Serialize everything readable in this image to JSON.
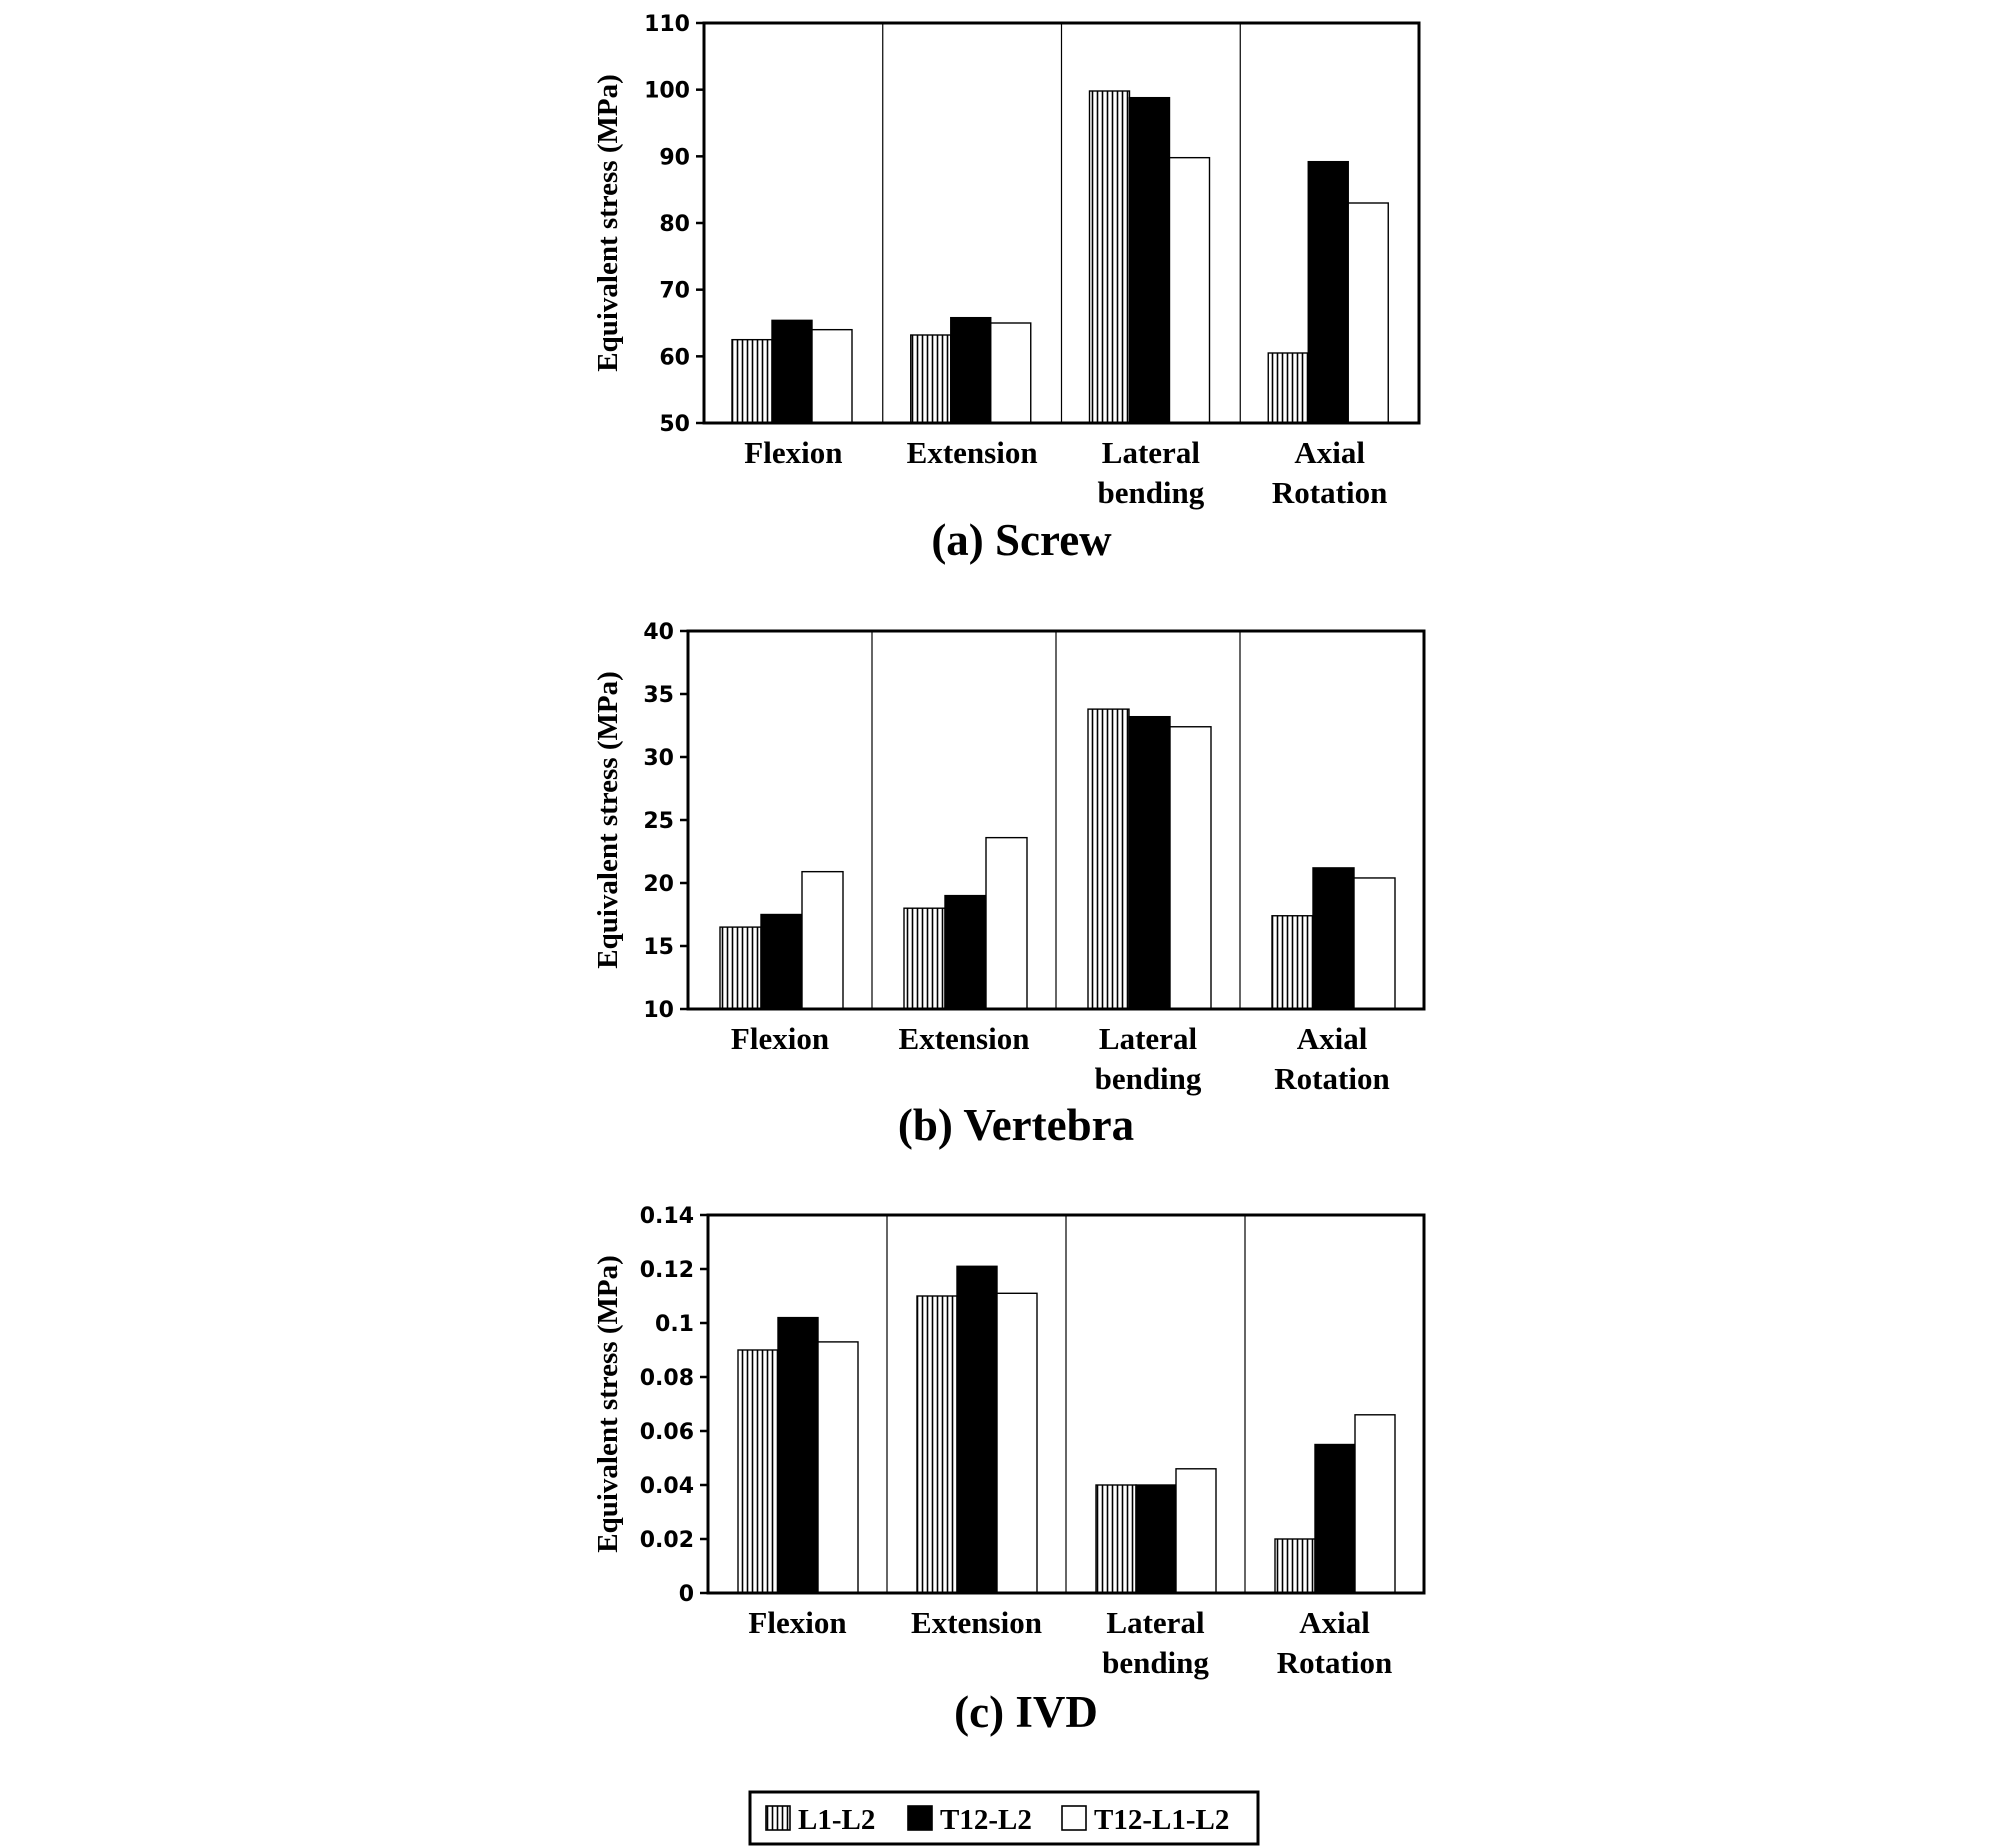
{
  "figure": {
    "legend": [
      {
        "label": "L1-L2",
        "pattern": "vertical-stripes"
      },
      {
        "label": "T12-L2",
        "pattern": "solid-black"
      },
      {
        "label": "T12-L1-L2",
        "pattern": "white"
      }
    ]
  },
  "chart_data": [
    {
      "type": "bar",
      "title": "(a) Screw",
      "ylabel": "Equivalent stress (MPa)",
      "categories": [
        [
          "Flexion"
        ],
        [
          "Extension"
        ],
        [
          "Lateral",
          "bending"
        ],
        [
          "Axial",
          "Rotation"
        ]
      ],
      "ylim": [
        50,
        110
      ],
      "yticks": [
        50,
        60,
        70,
        80,
        90,
        100,
        110
      ],
      "ytick_labels": [
        "50",
        "60",
        "70",
        "80",
        "90",
        "100",
        "110"
      ],
      "series": [
        {
          "name": "L1-L2",
          "values": [
            62.5,
            63.2,
            99.8,
            60.5
          ]
        },
        {
          "name": "T12-L2",
          "values": [
            65.4,
            65.8,
            98.8,
            89.2
          ]
        },
        {
          "name": "T12-L1-L2",
          "values": [
            64.0,
            65.0,
            89.8,
            83.0
          ]
        }
      ],
      "grid": false,
      "legend_position": "bottom-center"
    },
    {
      "type": "bar",
      "title": "(b) Vertebra",
      "ylabel": "Equivalent stress (MPa)",
      "categories": [
        [
          "Flexion"
        ],
        [
          "Extension"
        ],
        [
          "Lateral",
          "bending"
        ],
        [
          "Axial",
          "Rotation"
        ]
      ],
      "ylim": [
        10,
        40
      ],
      "yticks": [
        10,
        15,
        20,
        25,
        30,
        35,
        40
      ],
      "ytick_labels": [
        "10",
        "15",
        "20",
        "25",
        "30",
        "35",
        "40"
      ],
      "series": [
        {
          "name": "L1-L2",
          "values": [
            16.5,
            18.0,
            33.8,
            17.4
          ]
        },
        {
          "name": "T12-L2",
          "values": [
            17.5,
            19.0,
            33.2,
            21.2
          ]
        },
        {
          "name": "T12-L1-L2",
          "values": [
            20.9,
            23.6,
            32.4,
            20.4
          ]
        }
      ],
      "grid": false,
      "legend_position": "bottom-center"
    },
    {
      "type": "bar",
      "title": "(c) IVD",
      "ylabel": "Equivalent stress (MPa)",
      "categories": [
        [
          "Flexion"
        ],
        [
          "Extension"
        ],
        [
          "Lateral",
          "bending"
        ],
        [
          "Axial",
          "Rotation"
        ]
      ],
      "ylim": [
        0,
        0.14
      ],
      "yticks": [
        0,
        0.02,
        0.04,
        0.06,
        0.08,
        0.1,
        0.12,
        0.14
      ],
      "ytick_labels": [
        "0",
        "0.02",
        "0.04",
        "0.06",
        "0.08",
        "0.1",
        "0.12",
        "0.14"
      ],
      "series": [
        {
          "name": "L1-L2",
          "values": [
            0.09,
            0.11,
            0.04,
            0.02
          ]
        },
        {
          "name": "T12-L2",
          "values": [
            0.102,
            0.121,
            0.04,
            0.055
          ]
        },
        {
          "name": "T12-L1-L2",
          "values": [
            0.093,
            0.111,
            0.046,
            0.066
          ]
        }
      ],
      "grid": false,
      "legend_position": "bottom-center"
    }
  ]
}
